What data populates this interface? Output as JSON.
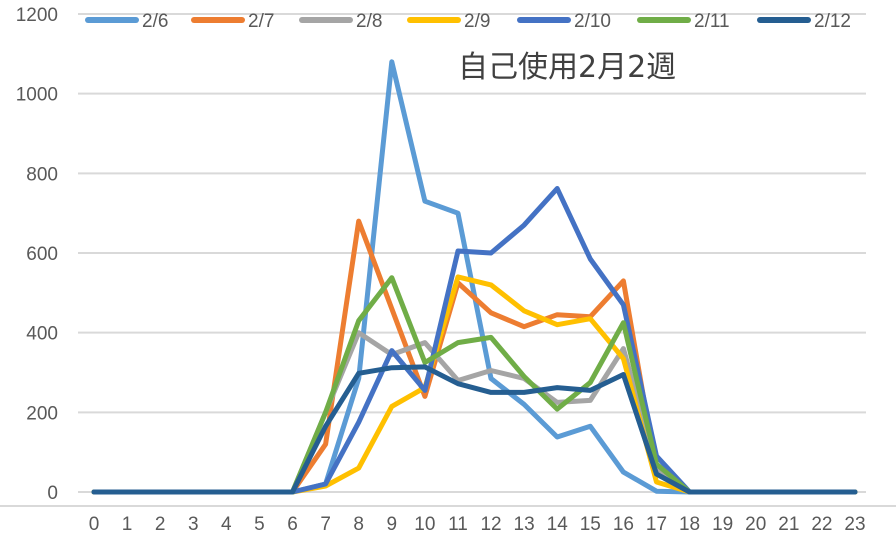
{
  "chart_data": {
    "type": "line",
    "title": "自己使用2月2週",
    "xlabel": "",
    "ylabel": "",
    "ylim": [
      0,
      1200
    ],
    "yticks": [
      0,
      200,
      400,
      600,
      800,
      1000,
      1200
    ],
    "grid": true,
    "legend_position": "top",
    "x": [
      0,
      1,
      2,
      3,
      4,
      5,
      6,
      7,
      8,
      9,
      10,
      11,
      12,
      13,
      14,
      15,
      16,
      17,
      18,
      19,
      20,
      21,
      22,
      23
    ],
    "series": [
      {
        "name": "2/6",
        "color": "#5b9bd5",
        "values": [
          0,
          0,
          0,
          0,
          0,
          0,
          0,
          20,
          285,
          1080,
          730,
          700,
          285,
          220,
          138,
          165,
          50,
          2,
          0,
          0,
          0,
          0,
          0,
          0
        ]
      },
      {
        "name": "2/7",
        "color": "#ed7d31",
        "values": [
          0,
          0,
          0,
          0,
          0,
          0,
          0,
          120,
          680,
          460,
          240,
          525,
          450,
          415,
          445,
          440,
          530,
          50,
          0,
          0,
          0,
          0,
          0,
          0
        ]
      },
      {
        "name": "2/8",
        "color": "#a5a5a5",
        "values": [
          0,
          0,
          0,
          0,
          0,
          0,
          0,
          200,
          400,
          345,
          375,
          280,
          305,
          285,
          225,
          230,
          360,
          60,
          0,
          0,
          0,
          0,
          0,
          0
        ]
      },
      {
        "name": "2/9",
        "color": "#ffc000",
        "values": [
          0,
          0,
          0,
          0,
          0,
          0,
          0,
          15,
          60,
          215,
          262,
          540,
          520,
          455,
          420,
          435,
          335,
          25,
          0,
          0,
          0,
          0,
          0,
          0
        ]
      },
      {
        "name": "2/10",
        "color": "#4472c4",
        "values": [
          0,
          0,
          0,
          0,
          0,
          0,
          0,
          20,
          175,
          355,
          255,
          605,
          600,
          670,
          762,
          585,
          470,
          90,
          0,
          0,
          0,
          0,
          0,
          0
        ]
      },
      {
        "name": "2/11",
        "color": "#70ad47",
        "values": [
          0,
          0,
          0,
          0,
          0,
          0,
          0,
          200,
          430,
          538,
          325,
          375,
          388,
          290,
          208,
          275,
          425,
          70,
          0,
          0,
          0,
          0,
          0,
          0
        ]
      },
      {
        "name": "2/12",
        "color": "#255e91",
        "values": [
          0,
          0,
          0,
          0,
          0,
          0,
          0,
          165,
          298,
          312,
          314,
          272,
          250,
          250,
          262,
          255,
          295,
          45,
          0,
          0,
          0,
          0,
          0,
          0
        ]
      }
    ]
  },
  "legend": {
    "items": [
      "2/6",
      "2/7",
      "2/8",
      "2/9",
      "2/10",
      "2/11",
      "2/12"
    ]
  },
  "title": "自己使用2月2週"
}
